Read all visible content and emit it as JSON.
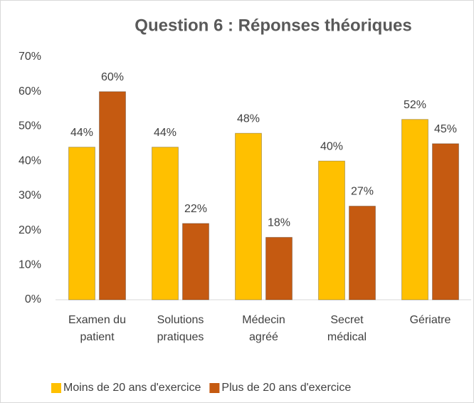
{
  "chart_data": {
    "type": "bar",
    "title": "Question 6 : Réponses théoriques",
    "categories": [
      "Examen du patient",
      "Solutions pratiques",
      "Médecin agréé",
      "Secret médical",
      "Gériatre"
    ],
    "series": [
      {
        "name": "Moins de 20 ans d'exercice",
        "color": "#ffc000",
        "values": [
          44,
          44,
          48,
          40,
          52
        ],
        "value_labels": [
          "44%",
          "44%",
          "48%",
          "40%",
          "52%"
        ]
      },
      {
        "name": "Plus de 20 ans d'exercice",
        "color": "#c55a11",
        "values": [
          60,
          22,
          18,
          27,
          45
        ],
        "value_labels": [
          "60%",
          "22%",
          "18%",
          "27%",
          "45%"
        ]
      }
    ],
    "ylim": [
      0,
      70
    ],
    "yticks": [
      {
        "value": 0,
        "label": "0%"
      },
      {
        "value": 10,
        "label": "10%"
      },
      {
        "value": 20,
        "label": "20%"
      },
      {
        "value": 30,
        "label": "30%"
      },
      {
        "value": 40,
        "label": "40%"
      },
      {
        "value": 50,
        "label": "50%"
      },
      {
        "value": 60,
        "label": "60%"
      },
      {
        "value": 70,
        "label": "70%"
      }
    ],
    "grid": false,
    "legend": "bottom"
  }
}
